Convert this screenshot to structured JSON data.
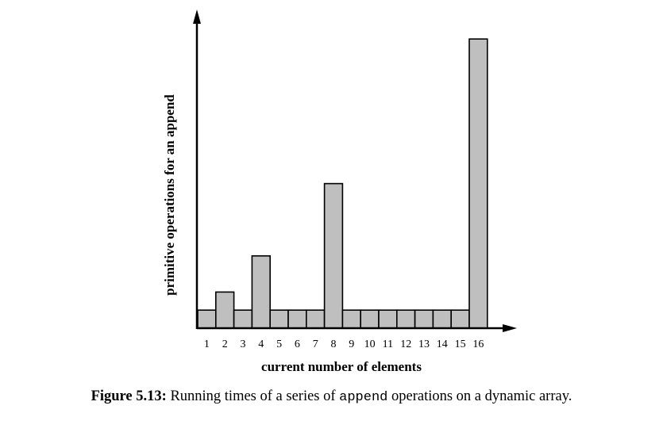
{
  "chart_data": {
    "type": "bar",
    "categories": [
      "1",
      "2",
      "3",
      "4",
      "5",
      "6",
      "7",
      "8",
      "9",
      "10",
      "11",
      "12",
      "13",
      "14",
      "15",
      "16"
    ],
    "values": [
      1,
      2,
      1,
      4,
      1,
      1,
      1,
      8,
      1,
      1,
      1,
      1,
      1,
      1,
      1,
      16
    ],
    "xlabel": "current number of elements",
    "ylabel": "primitive operations for an append",
    "ylim": [
      0,
      16
    ],
    "grid": false,
    "legend": "none",
    "bar_color": "#bfbfbf",
    "outline_color": "#000000"
  },
  "caption": {
    "figure_number": "Figure 5.13:",
    "text_before": " Running times of a series of ",
    "code_word": "append",
    "text_after": " operations on a dynamic array."
  }
}
